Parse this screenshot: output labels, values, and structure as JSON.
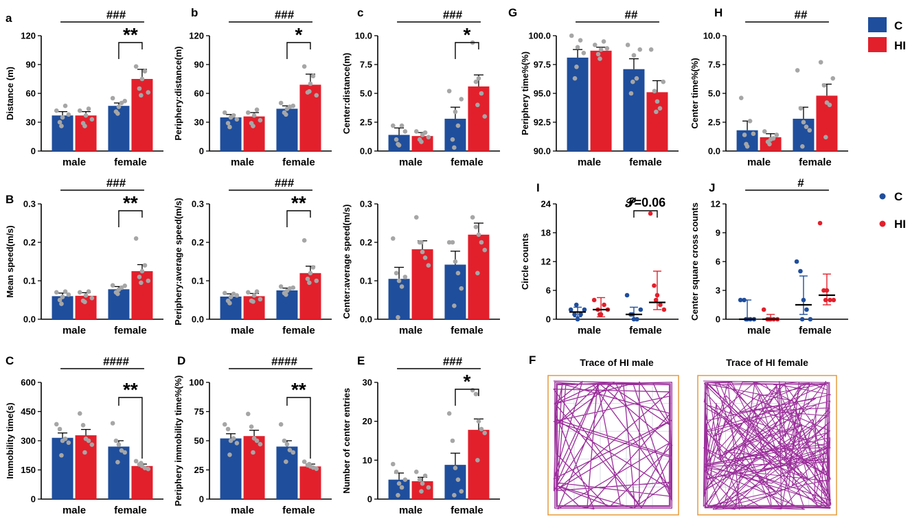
{
  "colors": {
    "C": "#1f4e9c",
    "HI": "#e2202c",
    "dot": "#a6a6a6",
    "trace": "#9b2e9b",
    "box": "#e59a3a",
    "grid": "#d9dde6"
  },
  "legend": {
    "bars": [
      {
        "label": "C",
        "color": "#1f4e9c"
      },
      {
        "label": "HI",
        "color": "#e2202c"
      }
    ],
    "dots": [
      {
        "label": "C",
        "color": "#1f4e9c"
      },
      {
        "label": "HI",
        "color": "#e2202c"
      }
    ]
  },
  "groups": [
    "male",
    "female"
  ],
  "letters": {
    "A": "A",
    "B": "B",
    "C": "C",
    "D": "D",
    "E": "E",
    "F": "F",
    "G": "G",
    "H": "H",
    "I": "I",
    "J": "J"
  },
  "traces": [
    {
      "title": "Trace of HI male"
    },
    {
      "title": "Trace of HI female"
    }
  ],
  "chart_data": [
    {
      "id": "a",
      "panel_letter": "a",
      "type": "bar",
      "ylabel": "Distance (m)",
      "ylim": [
        0,
        120
      ],
      "ticks": [
        "0",
        "30",
        "60",
        "90",
        "120"
      ],
      "series": [
        {
          "name": "C",
          "values": [
            37,
            47
          ],
          "sem": [
            4,
            3
          ],
          "points": [
            [
              42,
              30,
              35,
              47,
              38,
              26
            ],
            [
              55,
              41,
              46,
              50,
              52,
              39
            ]
          ]
        },
        {
          "name": "HI",
          "values": [
            37,
            75
          ],
          "sem": [
            4,
            10
          ],
          "points": [
            [
              42,
              29,
              37,
              44,
              33,
              26
            ],
            [
              88,
              65,
              75,
              83,
              61,
              58
            ]
          ]
        }
      ],
      "group_sig": "###",
      "within_sig": "**"
    },
    {
      "id": "b",
      "panel_letter": "b",
      "type": "bar",
      "ylabel": "Periphery:distance(m)",
      "ylim": [
        0,
        120
      ],
      "ticks": [
        "0",
        "30",
        "60",
        "90",
        "120"
      ],
      "series": [
        {
          "name": "C",
          "values": [
            35,
            44
          ],
          "sem": [
            3,
            3
          ],
          "points": [
            [
              40,
              29,
              35,
              37,
              33,
              25
            ],
            [
              50,
              40,
              44,
              46,
              47,
              38
            ]
          ]
        },
        {
          "name": "HI",
          "values": [
            36,
            69
          ],
          "sem": [
            4,
            11
          ],
          "points": [
            [
              40,
              29,
              37,
              43,
              32,
              26
            ],
            [
              88,
              61,
              70,
              78,
              58,
              62
            ]
          ]
        }
      ],
      "group_sig": "###",
      "within_sig": "*"
    },
    {
      "id": "c",
      "panel_letter": "c",
      "type": "bar",
      "ylabel": "Center:distance(m)",
      "ylim": [
        0,
        10
      ],
      "ticks": [
        "0.0",
        "2.5",
        "5.0",
        "7.5",
        "10.0"
      ],
      "series": [
        {
          "name": "C",
          "values": [
            1.4,
            2.8
          ],
          "sem": [
            0.6,
            1.0
          ],
          "points": [
            [
              2.2,
              1.0,
              0.5,
              2.2,
              1.7,
              0.6
            ],
            [
              5.2,
              1.0,
              3.4,
              2.2,
              4.5,
              0.3
            ]
          ]
        },
        {
          "name": "HI",
          "values": [
            1.3,
            5.6
          ],
          "sem": [
            0.3,
            1.0
          ],
          "points": [
            [
              1.7,
              1.0,
              1.4,
              1.6,
              1.2,
              0.8
            ],
            [
              9.4,
              6.0,
              6.3,
              5.0,
              3.0,
              4.0
            ]
          ]
        }
      ],
      "group_sig": "###",
      "within_sig": "*"
    },
    {
      "id": "G",
      "panel_letter": "G",
      "type": "bar",
      "ylabel": "Periphery time%(%)",
      "ylim": [
        90,
        100
      ],
      "ticks": [
        "90.0",
        "92.5",
        "95.0",
        "97.5",
        "100.0"
      ],
      "series": [
        {
          "name": "C",
          "values": [
            98.1,
            97.1
          ],
          "sem": [
            0.7,
            0.9
          ],
          "points": [
            [
              100.0,
              96.3,
              99.0,
              99.6,
              98.5,
              97.3
            ],
            [
              99.2,
              95.0,
              98.3,
              96.3,
              98.8,
              96.0
            ]
          ]
        },
        {
          "name": "HI",
          "values": [
            98.7,
            95.1
          ],
          "sem": [
            0.3,
            1.0
          ],
          "points": [
            [
              99.2,
              98.4,
              98.8,
              99.5,
              98.9,
              98.0
            ],
            [
              98.8,
              95.2,
              94.3,
              93.7,
              96.0,
              93.4
            ]
          ]
        }
      ],
      "group_sig": "##",
      "within_sig": ""
    },
    {
      "id": "H",
      "panel_letter": "H",
      "type": "bar",
      "ylabel": "Center time%(%)",
      "ylim": [
        0,
        10
      ],
      "ticks": [
        "0.0",
        "2.5",
        "5.0",
        "7.5",
        "10.0"
      ],
      "series": [
        {
          "name": "C",
          "values": [
            1.8,
            2.8
          ],
          "sem": [
            0.8,
            1.0
          ],
          "points": [
            [
              4.6,
              1.4,
              0.4,
              2.6,
              1.5,
              0.6
            ],
            [
              7.0,
              3.7,
              2.5,
              2.1,
              1.8,
              0.4
            ]
          ]
        },
        {
          "name": "HI",
          "values": [
            1.2,
            4.8
          ],
          "sem": [
            0.3,
            1.0
          ],
          "points": [
            [
              1.7,
              0.8,
              1.0,
              1.1,
              1.4,
              0.6
            ],
            [
              7.7,
              5.7,
              4.2,
              4.0,
              6.3,
              1.2
            ]
          ]
        }
      ],
      "group_sig": "##",
      "within_sig": ""
    },
    {
      "id": "B1",
      "panel_letter": "B",
      "type": "bar",
      "ylabel": "Mean speed(m/s)",
      "ylim": [
        0,
        0.3
      ],
      "ticks": [
        "0.0",
        "0.1",
        "0.2",
        "0.3"
      ],
      "series": [
        {
          "name": "C",
          "values": [
            0.06,
            0.078
          ],
          "sem": [
            0.008,
            0.007
          ],
          "points": [
            [
              0.07,
              0.05,
              0.058,
              0.072,
              0.064,
              0.04
            ],
            [
              0.088,
              0.07,
              0.077,
              0.082,
              0.087,
              0.066
            ]
          ]
        },
        {
          "name": "HI",
          "values": [
            0.061,
            0.125
          ],
          "sem": [
            0.008,
            0.017
          ],
          "points": [
            [
              0.07,
              0.048,
              0.062,
              0.072,
              0.055,
              0.045
            ],
            [
              0.21,
              0.11,
              0.125,
              0.14,
              0.1,
              0.095
            ]
          ]
        }
      ],
      "group_sig": "###",
      "within_sig": "**"
    },
    {
      "id": "B2",
      "panel_letter": "",
      "type": "bar",
      "ylabel": "Periphery:average speed(m/s)",
      "ylim": [
        0,
        0.3
      ],
      "ticks": [
        "0.0",
        "0.1",
        "0.2",
        "0.3"
      ],
      "series": [
        {
          "name": "C",
          "values": [
            0.059,
            0.075
          ],
          "sem": [
            0.007,
            0.006
          ],
          "points": [
            [
              0.068,
              0.048,
              0.058,
              0.066,
              0.062,
              0.042
            ],
            [
              0.085,
              0.068,
              0.074,
              0.08,
              0.082,
              0.064
            ]
          ]
        },
        {
          "name": "HI",
          "values": [
            0.06,
            0.12
          ],
          "sem": [
            0.007,
            0.018
          ],
          "points": [
            [
              0.07,
              0.048,
              0.062,
              0.072,
              0.052,
              0.046
            ],
            [
              0.205,
              0.105,
              0.12,
              0.135,
              0.1,
              0.095
            ]
          ]
        }
      ],
      "group_sig": "###",
      "within_sig": "**"
    },
    {
      "id": "B3",
      "panel_letter": "",
      "type": "bar",
      "ylabel": "Center:average speed(m/s)",
      "ylim": [
        0,
        0.3
      ],
      "ticks": [
        "0.0",
        "0.1",
        "0.2",
        "0.3"
      ],
      "series": [
        {
          "name": "C",
          "values": [
            0.105,
            0.142
          ],
          "sem": [
            0.03,
            0.035
          ],
          "points": [
            [
              0.21,
              0.12,
              0.1,
              0.085,
              0.11,
              0.005
            ],
            [
              0.2,
              0.2,
              0.15,
              0.12,
              0.08,
              0.035
            ]
          ]
        },
        {
          "name": "HI",
          "values": [
            0.182,
            0.22
          ],
          "sem": [
            0.022,
            0.03
          ],
          "points": [
            [
              0.265,
              0.2,
              0.175,
              0.16,
              0.14,
              0.2
            ],
            [
              0.265,
              0.24,
              0.22,
              0.2,
              0.18,
              0.12
            ]
          ]
        }
      ],
      "group_sig": "",
      "within_sig": ""
    },
    {
      "id": "C",
      "panel_letter": "C",
      "type": "bar",
      "ylabel": "Immobility time(s)",
      "ylim": [
        0,
        600
      ],
      "ticks": [
        "0",
        "150",
        "300",
        "450",
        "600"
      ],
      "series": [
        {
          "name": "C",
          "values": [
            315,
            270
          ],
          "sem": [
            25,
            30
          ],
          "points": [
            [
              385,
              360,
              300,
              310,
              290,
              225
            ],
            [
              390,
              300,
              280,
              250,
              240,
              190
            ]
          ]
        },
        {
          "name": "HI",
          "values": [
            328,
            170
          ],
          "sem": [
            30,
            10
          ],
          "points": [
            [
              440,
              380,
              310,
              300,
              280,
              240
            ],
            [
              195,
              178,
              170,
              160,
              155,
              185
            ]
          ]
        }
      ],
      "group_sig": "####",
      "within_sig": "**"
    },
    {
      "id": "D",
      "panel_letter": "D",
      "type": "bar",
      "ylabel": "Periphery immobility time%(%)",
      "ylim": [
        0,
        100
      ],
      "ticks": [
        "0",
        "25",
        "50",
        "75",
        "100"
      ],
      "series": [
        {
          "name": "C",
          "values": [
            52,
            45
          ],
          "sem": [
            4,
            5
          ],
          "points": [
            [
              64,
              60,
              50,
              52,
              48,
              38
            ],
            [
              64,
              50,
              47,
              42,
              40,
              32
            ]
          ]
        },
        {
          "name": "HI",
          "values": [
            54,
            28
          ],
          "sem": [
            5,
            2
          ],
          "points": [
            [
              73,
              62,
              52,
              50,
              47,
              40
            ],
            [
              32,
              29,
              28,
              27,
              26,
              30
            ]
          ]
        }
      ],
      "group_sig": "####",
      "within_sig": "**"
    },
    {
      "id": "E",
      "panel_letter": "E",
      "type": "bar",
      "ylabel": "Number of center entries",
      "ylim": [
        0,
        30
      ],
      "ticks": [
        "0",
        "10",
        "20",
        "30"
      ],
      "series": [
        {
          "name": "C",
          "values": [
            5,
            8.8
          ],
          "sem": [
            1.7,
            3
          ],
          "points": [
            [
              9,
              7,
              4,
              3,
              5,
              1
            ],
            [
              22,
              15,
              8,
              5,
              2,
              1
            ]
          ]
        },
        {
          "name": "HI",
          "values": [
            4.6,
            17.8
          ],
          "sem": [
            1,
            2.8
          ],
          "points": [
            [
              7,
              5,
              4,
              6,
              3,
              2
            ],
            [
              28,
              27,
              20,
              18,
              17,
              10
            ]
          ]
        }
      ],
      "group_sig": "###",
      "within_sig": "*"
    },
    {
      "id": "I",
      "panel_letter": "I",
      "type": "dotplot",
      "ylabel": "Circle counts",
      "ylim": [
        0,
        24
      ],
      "ticks": [
        "0",
        "6",
        "12",
        "18",
        "24"
      ],
      "series": [
        {
          "name": "C",
          "median": [
            1.5,
            1
          ],
          "range": [
            [
              0.5,
              2.5
            ],
            [
              0,
              2.5
            ]
          ],
          "points": [
            [
              2,
              1,
              0,
              1,
              2,
              3
            ],
            [
              5,
              1,
              0,
              0,
              2,
              1
            ]
          ]
        },
        {
          "name": "HI",
          "median": [
            2,
            3.5
          ],
          "range": [
            [
              0.5,
              4.5
            ],
            [
              2,
              10
            ]
          ],
          "points": [
            [
              4,
              2,
              1,
              3,
              2,
              1
            ],
            [
              22,
              7,
              5,
              3,
              2,
              4
            ]
          ]
        }
      ],
      "group_sig": "",
      "within_sig": "𝓟=0.06"
    },
    {
      "id": "J",
      "panel_letter": "J",
      "type": "dotplot",
      "ylabel": "Center square cross counts",
      "ylim": [
        0,
        12
      ],
      "ticks": [
        "0",
        "3",
        "6",
        "9",
        "12"
      ],
      "series": [
        {
          "name": "C",
          "median": [
            0,
            1.5
          ],
          "range": [
            [
              0,
              2
            ],
            [
              0.5,
              4.5
            ]
          ],
          "points": [
            [
              2,
              2,
              0,
              0,
              0,
              0
            ],
            [
              6,
              5,
              2,
              1,
              0,
              0
            ]
          ]
        },
        {
          "name": "HI",
          "median": [
            0,
            2.5
          ],
          "range": [
            [
              0,
              0.5
            ],
            [
              1.5,
              4.7
            ]
          ],
          "points": [
            [
              1,
              0,
              0,
              0,
              0,
              0
            ],
            [
              10,
              3,
              3,
              2,
              2,
              2
            ]
          ]
        }
      ],
      "group_sig": "#",
      "within_sig": ""
    }
  ]
}
